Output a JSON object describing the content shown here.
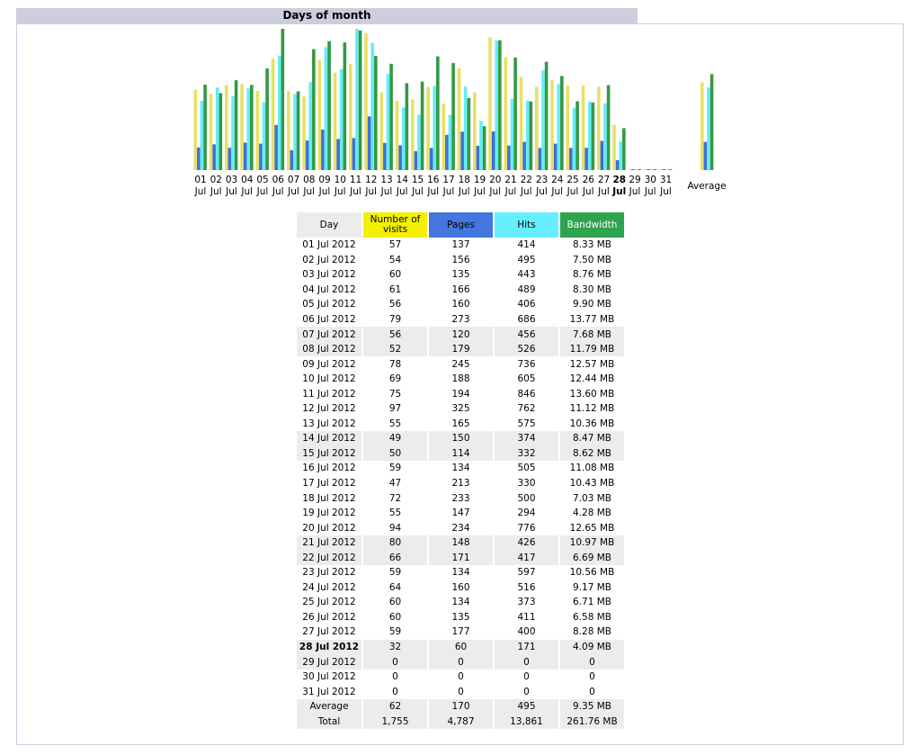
{
  "title": "Days of month",
  "colors": {
    "visits": "#e8e066",
    "pages": "#3f6fd6",
    "hits": "#66ecf6",
    "bandwidth": "#339944",
    "header_bg": "#cccdde"
  },
  "chart_data": {
    "type": "bar",
    "title": "Days of month",
    "categories": [
      "01",
      "02",
      "03",
      "04",
      "05",
      "06",
      "07",
      "08",
      "09",
      "10",
      "11",
      "12",
      "13",
      "14",
      "15",
      "16",
      "17",
      "18",
      "19",
      "20",
      "21",
      "22",
      "23",
      "24",
      "25",
      "26",
      "27",
      "28",
      "29",
      "30",
      "31"
    ],
    "subcategory": "Jul",
    "highlight_category": "28",
    "average_label": "Average",
    "series": [
      {
        "name": "Number of visits",
        "values": [
          57,
          54,
          60,
          61,
          56,
          79,
          56,
          52,
          78,
          69,
          75,
          97,
          55,
          49,
          50,
          59,
          47,
          72,
          55,
          94,
          80,
          66,
          59,
          64,
          60,
          60,
          59,
          32,
          0,
          0,
          0
        ],
        "average": 62
      },
      {
        "name": "Pages",
        "values": [
          137,
          156,
          135,
          166,
          160,
          273,
          120,
          179,
          245,
          188,
          194,
          325,
          165,
          150,
          114,
          134,
          213,
          233,
          147,
          234,
          148,
          171,
          134,
          160,
          134,
          135,
          177,
          60,
          0,
          0,
          0
        ],
        "average": 170
      },
      {
        "name": "Hits",
        "values": [
          414,
          495,
          443,
          489,
          406,
          686,
          456,
          526,
          736,
          605,
          846,
          762,
          575,
          374,
          332,
          505,
          330,
          500,
          294,
          776,
          426,
          417,
          597,
          516,
          373,
          411,
          400,
          171,
          0,
          0,
          0
        ],
        "average": 495
      },
      {
        "name": "Bandwidth",
        "values": [
          8.33,
          7.5,
          8.76,
          8.3,
          9.9,
          13.77,
          7.68,
          11.79,
          12.57,
          12.44,
          13.6,
          11.12,
          10.36,
          8.47,
          8.62,
          11.08,
          10.43,
          7.03,
          4.28,
          12.65,
          10.97,
          6.69,
          10.56,
          9.17,
          6.71,
          6.58,
          8.28,
          4.09,
          0,
          0,
          0
        ],
        "unit": "MB",
        "average": 9.35
      }
    ]
  },
  "table": {
    "headers": {
      "day": "Day",
      "visits": "Number of visits",
      "pages": "Pages",
      "hits": "Hits",
      "bandwidth": "Bandwidth"
    },
    "rows": [
      {
        "day": "01 Jul 2012",
        "visits": "57",
        "pages": "137",
        "hits": "414",
        "bandwidth": "8.33 MB",
        "weekend": false
      },
      {
        "day": "02 Jul 2012",
        "visits": "54",
        "pages": "156",
        "hits": "495",
        "bandwidth": "7.50 MB",
        "weekend": false
      },
      {
        "day": "03 Jul 2012",
        "visits": "60",
        "pages": "135",
        "hits": "443",
        "bandwidth": "8.76 MB",
        "weekend": false
      },
      {
        "day": "04 Jul 2012",
        "visits": "61",
        "pages": "166",
        "hits": "489",
        "bandwidth": "8.30 MB",
        "weekend": false
      },
      {
        "day": "05 Jul 2012",
        "visits": "56",
        "pages": "160",
        "hits": "406",
        "bandwidth": "9.90 MB",
        "weekend": false
      },
      {
        "day": "06 Jul 2012",
        "visits": "79",
        "pages": "273",
        "hits": "686",
        "bandwidth": "13.77 MB",
        "weekend": false
      },
      {
        "day": "07 Jul 2012",
        "visits": "56",
        "pages": "120",
        "hits": "456",
        "bandwidth": "7.68 MB",
        "weekend": true
      },
      {
        "day": "08 Jul 2012",
        "visits": "52",
        "pages": "179",
        "hits": "526",
        "bandwidth": "11.79 MB",
        "weekend": true
      },
      {
        "day": "09 Jul 2012",
        "visits": "78",
        "pages": "245",
        "hits": "736",
        "bandwidth": "12.57 MB",
        "weekend": false
      },
      {
        "day": "10 Jul 2012",
        "visits": "69",
        "pages": "188",
        "hits": "605",
        "bandwidth": "12.44 MB",
        "weekend": false
      },
      {
        "day": "11 Jul 2012",
        "visits": "75",
        "pages": "194",
        "hits": "846",
        "bandwidth": "13.60 MB",
        "weekend": false
      },
      {
        "day": "12 Jul 2012",
        "visits": "97",
        "pages": "325",
        "hits": "762",
        "bandwidth": "11.12 MB",
        "weekend": false
      },
      {
        "day": "13 Jul 2012",
        "visits": "55",
        "pages": "165",
        "hits": "575",
        "bandwidth": "10.36 MB",
        "weekend": false
      },
      {
        "day": "14 Jul 2012",
        "visits": "49",
        "pages": "150",
        "hits": "374",
        "bandwidth": "8.47 MB",
        "weekend": true
      },
      {
        "day": "15 Jul 2012",
        "visits": "50",
        "pages": "114",
        "hits": "332",
        "bandwidth": "8.62 MB",
        "weekend": true
      },
      {
        "day": "16 Jul 2012",
        "visits": "59",
        "pages": "134",
        "hits": "505",
        "bandwidth": "11.08 MB",
        "weekend": false
      },
      {
        "day": "17 Jul 2012",
        "visits": "47",
        "pages": "213",
        "hits": "330",
        "bandwidth": "10.43 MB",
        "weekend": false
      },
      {
        "day": "18 Jul 2012",
        "visits": "72",
        "pages": "233",
        "hits": "500",
        "bandwidth": "7.03 MB",
        "weekend": false
      },
      {
        "day": "19 Jul 2012",
        "visits": "55",
        "pages": "147",
        "hits": "294",
        "bandwidth": "4.28 MB",
        "weekend": false
      },
      {
        "day": "20 Jul 2012",
        "visits": "94",
        "pages": "234",
        "hits": "776",
        "bandwidth": "12.65 MB",
        "weekend": false
      },
      {
        "day": "21 Jul 2012",
        "visits": "80",
        "pages": "148",
        "hits": "426",
        "bandwidth": "10.97 MB",
        "weekend": true
      },
      {
        "day": "22 Jul 2012",
        "visits": "66",
        "pages": "171",
        "hits": "417",
        "bandwidth": "6.69 MB",
        "weekend": true
      },
      {
        "day": "23 Jul 2012",
        "visits": "59",
        "pages": "134",
        "hits": "597",
        "bandwidth": "10.56 MB",
        "weekend": false
      },
      {
        "day": "24 Jul 2012",
        "visits": "64",
        "pages": "160",
        "hits": "516",
        "bandwidth": "9.17 MB",
        "weekend": false
      },
      {
        "day": "25 Jul 2012",
        "visits": "60",
        "pages": "134",
        "hits": "373",
        "bandwidth": "6.71 MB",
        "weekend": false
      },
      {
        "day": "26 Jul 2012",
        "visits": "60",
        "pages": "135",
        "hits": "411",
        "bandwidth": "6.58 MB",
        "weekend": false
      },
      {
        "day": "27 Jul 2012",
        "visits": "59",
        "pages": "177",
        "hits": "400",
        "bandwidth": "8.28 MB",
        "weekend": false
      },
      {
        "day": "28 Jul 2012",
        "visits": "32",
        "pages": "60",
        "hits": "171",
        "bandwidth": "4.09 MB",
        "weekend": true,
        "today": true
      },
      {
        "day": "29 Jul 2012",
        "visits": "0",
        "pages": "0",
        "hits": "0",
        "bandwidth": "0",
        "weekend": true
      },
      {
        "day": "30 Jul 2012",
        "visits": "0",
        "pages": "0",
        "hits": "0",
        "bandwidth": "0",
        "weekend": false
      },
      {
        "day": "31 Jul 2012",
        "visits": "0",
        "pages": "0",
        "hits": "0",
        "bandwidth": "0",
        "weekend": false
      }
    ],
    "average": {
      "day": "Average",
      "visits": "62",
      "pages": "170",
      "hits": "495",
      "bandwidth": "9.35 MB"
    },
    "total": {
      "day": "Total",
      "visits": "1,755",
      "pages": "4,787",
      "hits": "13,861",
      "bandwidth": "261.76 MB"
    }
  }
}
